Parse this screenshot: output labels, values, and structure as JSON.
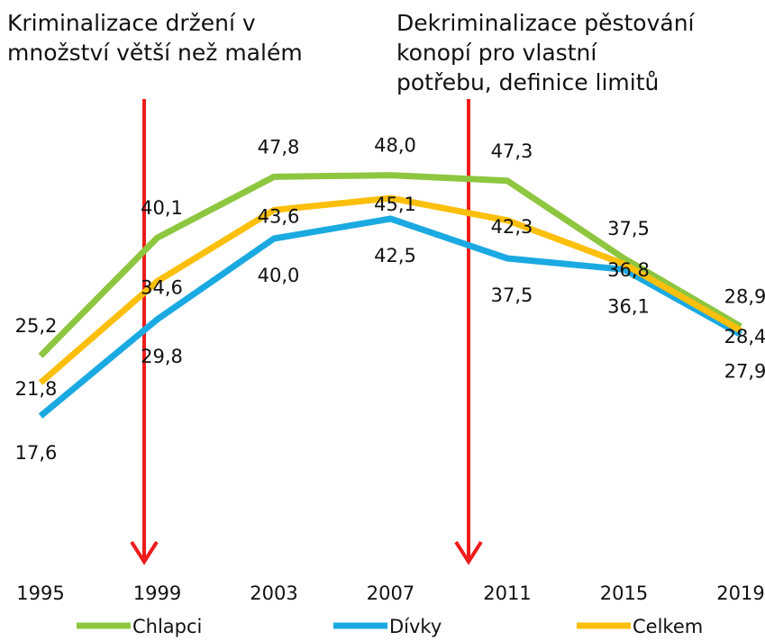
{
  "chart_data": {
    "type": "line",
    "annotations": [
      [
        "Kriminalizace držení v",
        "množství větší než malém"
      ],
      [
        "Dekriminalizace pěstování",
        "konopí pro vlastní",
        "potřebu, definice limitů"
      ]
    ],
    "categories": [
      "1995",
      "1999",
      "2003",
      "2007",
      "2011",
      "2015",
      "2019"
    ],
    "series": [
      {
        "name": "Chlapci",
        "color": "#8dc63f",
        "values": [
          25.2,
          40.1,
          47.8,
          48.0,
          47.3,
          37.5,
          28.9
        ],
        "value_labels": [
          "25,2",
          "40,1",
          "47,8",
          "48,0",
          "47,3",
          "37,5",
          "28,9"
        ]
      },
      {
        "name": "Dívky",
        "color": "#1ba9e1",
        "values": [
          17.6,
          29.8,
          40.0,
          42.5,
          37.5,
          36.1,
          27.9
        ],
        "value_labels": [
          "17,6",
          "29,8",
          "40,0",
          "42,5",
          "37,5",
          "36,1",
          "27,9"
        ]
      },
      {
        "name": "Celkem",
        "color": "#fbbf0c",
        "values": [
          21.8,
          34.6,
          43.6,
          45.1,
          42.3,
          36.8,
          28.4
        ],
        "value_labels": [
          "21,8",
          "34,6",
          "43,6",
          "45,1",
          "42,3",
          "36,8",
          "28,4"
        ]
      }
    ]
  }
}
